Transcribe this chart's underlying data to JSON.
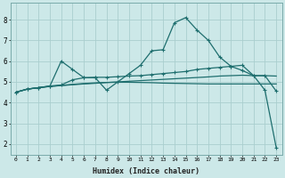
{
  "xlabel": "Humidex (Indice chaleur)",
  "ylabel": "",
  "xlim": [
    -0.5,
    23.5
  ],
  "ylim": [
    1.5,
    8.8
  ],
  "yticks": [
    2,
    3,
    4,
    5,
    6,
    7,
    8
  ],
  "xticks": [
    0,
    1,
    2,
    3,
    4,
    5,
    6,
    7,
    8,
    9,
    10,
    11,
    12,
    13,
    14,
    15,
    16,
    17,
    18,
    19,
    20,
    21,
    22,
    23
  ],
  "bg_color": "#cce8e8",
  "line_color": "#1e6e6e",
  "grid_color": "#aacece",
  "series": [
    {
      "x": [
        0,
        1,
        2,
        3,
        4,
        5,
        6,
        7,
        8,
        9,
        10,
        11,
        12,
        13,
        14,
        15,
        16,
        17,
        18,
        19,
        20,
        21,
        22,
        23
      ],
      "y": [
        4.5,
        4.65,
        4.72,
        4.78,
        4.83,
        4.88,
        4.92,
        4.95,
        4.97,
        4.98,
        4.98,
        4.97,
        4.96,
        4.94,
        4.93,
        4.92,
        4.91,
        4.9,
        4.9,
        4.9,
        4.9,
        4.9,
        4.9,
        4.9
      ],
      "marker": false
    },
    {
      "x": [
        0,
        1,
        2,
        3,
        4,
        5,
        6,
        7,
        8,
        9,
        10,
        11,
        12,
        13,
        14,
        15,
        16,
        17,
        18,
        19,
        20,
        21,
        22,
        23
      ],
      "y": [
        4.5,
        4.65,
        4.72,
        4.78,
        4.82,
        4.86,
        4.9,
        4.93,
        4.97,
        5.0,
        5.03,
        5.06,
        5.09,
        5.12,
        5.15,
        5.18,
        5.21,
        5.24,
        5.28,
        5.3,
        5.32,
        5.3,
        5.3,
        5.28
      ],
      "marker": false
    },
    {
      "x": [
        0,
        1,
        2,
        3,
        4,
        5,
        6,
        7,
        8,
        9,
        10,
        11,
        12,
        13,
        14,
        15,
        16,
        17,
        18,
        19,
        20,
        21,
        22,
        23
      ],
      "y": [
        4.5,
        4.65,
        4.72,
        4.8,
        6.0,
        5.6,
        5.2,
        5.2,
        4.6,
        5.0,
        5.4,
        5.8,
        6.5,
        6.55,
        7.85,
        8.1,
        7.5,
        7.0,
        6.2,
        5.75,
        5.55,
        5.3,
        5.3,
        4.55
      ],
      "marker": true
    },
    {
      "x": [
        0,
        1,
        2,
        3,
        4,
        5,
        6,
        7,
        8,
        9,
        10,
        11,
        12,
        13,
        14,
        15,
        16,
        17,
        18,
        19,
        20,
        21,
        22,
        23
      ],
      "y": [
        4.5,
        4.65,
        4.72,
        4.8,
        4.85,
        5.1,
        5.2,
        5.22,
        5.22,
        5.25,
        5.28,
        5.3,
        5.35,
        5.4,
        5.45,
        5.5,
        5.6,
        5.65,
        5.7,
        5.75,
        5.8,
        5.3,
        4.6,
        1.82
      ],
      "marker": true
    }
  ],
  "figsize": [
    3.2,
    2.0
  ],
  "dpi": 100
}
